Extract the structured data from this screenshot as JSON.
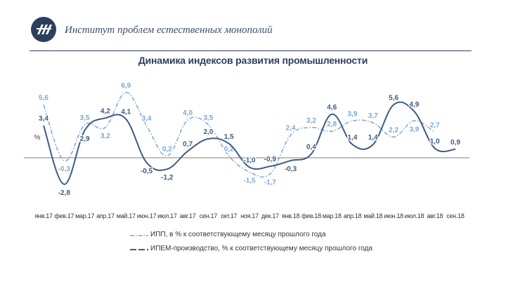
{
  "header": {
    "org_name": "Институт проблем естественных монополий",
    "logo_icon": "iprem-logo-icon"
  },
  "colors": {
    "navy": "#2d3f5e",
    "series_ipp": "#7ea6d3",
    "series_ipem": "#3d5b82",
    "header_text": "#3c4f6e"
  },
  "chart_data": {
    "type": "line",
    "title": "Динамика индексов развития промышленности",
    "ylabel": "%",
    "xlabel": "",
    "categories": [
      "янв.17",
      "фев.17",
      "мар.17",
      "апр.17",
      "май.17",
      "июн.17",
      "июл.17",
      "авг.17",
      "сен.17",
      "окт.17",
      "ноя.17",
      "дек.17",
      "янв.18",
      "фев.18",
      "мар.18",
      "апр.18",
      "май.18",
      "июн.18",
      "июл.18",
      "авг.18",
      "сен.18"
    ],
    "ylim": [
      -4,
      9
    ],
    "grid": false,
    "legend_position": "bottom",
    "series": [
      {
        "name": "ИПП, в % к соответствующему месяцу прошлого года",
        "style": "dash-dot",
        "values": [
          5.6,
          -0.3,
          3.5,
          3.2,
          6.9,
          3.4,
          0.2,
          4.0,
          3.5,
          0.2,
          -1.5,
          -1.7,
          2.4,
          3.2,
          2.8,
          3.9,
          3.7,
          2.2,
          3.9,
          2.7,
          null
        ],
        "labels": [
          "5,6",
          "-0,3",
          "3,5",
          "3,2",
          "6,9",
          "3,4",
          "0,2",
          "4,0",
          "3,5",
          "0,2",
          "-1,5",
          "-1,7",
          "2,4",
          "3,2",
          "2,8",
          "3,9",
          "3,7",
          "2,2",
          "3,9",
          "2,7",
          ""
        ]
      },
      {
        "name": "ИПЕМ-производство, % к соответствующему месяцу прошлого года",
        "style": "solid",
        "values": [
          3.4,
          -2.8,
          2.9,
          4.2,
          4.1,
          -0.5,
          -1.2,
          0.7,
          2.0,
          1.5,
          -1.0,
          -0.9,
          -0.3,
          0.4,
          4.6,
          1.4,
          1.4,
          5.6,
          4.9,
          1.0,
          0.9
        ],
        "labels": [
          "3,4",
          "-2,8",
          "2,9",
          "4,2",
          "4,1",
          "-0,5",
          "-1,2",
          "0,7",
          "2,0",
          "1,5",
          "-1,0",
          "-0,9",
          "-0,3",
          "0,4",
          "4,6",
          "1,4",
          "1,4",
          "5,6",
          "4,9",
          "1,0",
          "0,9"
        ]
      }
    ]
  }
}
